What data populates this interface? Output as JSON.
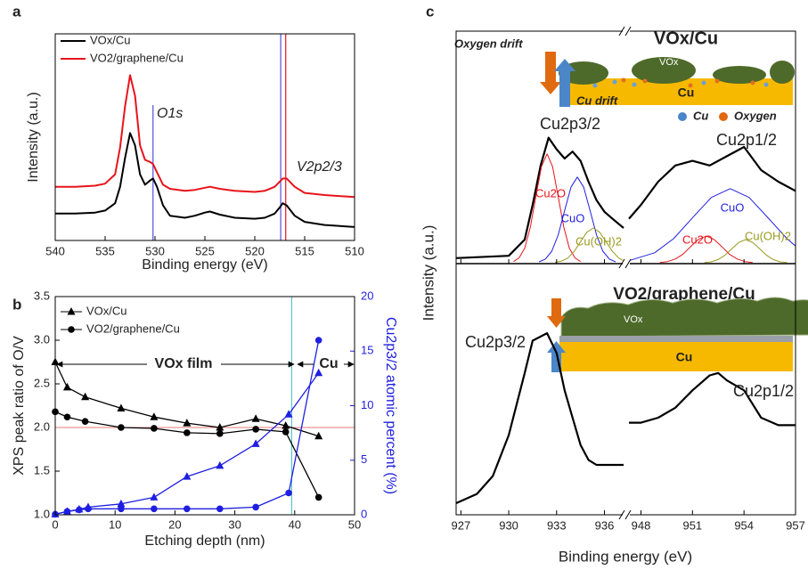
{
  "chart_data": [
    {
      "type": "line",
      "panel_label": "a",
      "x_label": "Binding energy (eV)",
      "y_label": "Intensity (a.u.)",
      "xlim": [
        540,
        510
      ],
      "xticks": [
        540,
        535,
        530,
        525,
        520,
        515,
        510
      ],
      "ylim": [
        0,
        10
      ],
      "x": [
        540,
        538,
        536,
        535,
        534,
        533.5,
        533,
        532.5,
        532,
        531.5,
        531,
        530.5,
        530.2,
        529.8,
        529.2,
        528.5,
        527,
        526,
        525,
        524.5,
        523.5,
        522,
        520,
        519,
        518,
        517.5,
        517.2,
        516.8,
        516,
        515,
        513,
        510
      ],
      "series": [
        {
          "name": "VOx/Cu",
          "color": "#000000",
          "values": [
            1.3,
            1.3,
            1.35,
            1.45,
            1.8,
            2.6,
            4.0,
            5.2,
            4.6,
            3.2,
            2.7,
            2.9,
            3.0,
            2.6,
            1.7,
            1.2,
            1.1,
            1.2,
            1.35,
            1.4,
            1.25,
            1.1,
            1.05,
            1.1,
            1.3,
            1.6,
            1.8,
            1.7,
            1.2,
            0.9,
            0.75,
            0.65
          ]
        },
        {
          "name": "VO2/graphene/Cu",
          "color": "#e8141b",
          "values": [
            2.6,
            2.6,
            2.65,
            2.75,
            3.2,
            4.5,
            6.5,
            8.0,
            7.0,
            4.6,
            3.9,
            3.8,
            3.7,
            3.3,
            2.7,
            2.5,
            2.4,
            2.45,
            2.55,
            2.6,
            2.5,
            2.4,
            2.35,
            2.4,
            2.6,
            2.85,
            3.0,
            3.0,
            2.6,
            2.3,
            2.2,
            2.1
          ]
        }
      ],
      "vlines": [
        {
          "x": 530.2,
          "color": "#5050e0"
        },
        {
          "x": 517.4,
          "color": "#5050e0"
        },
        {
          "x": 516.9,
          "color": "#e8141b"
        }
      ],
      "annotations": [
        "O1s",
        "V2p2/3"
      ]
    },
    {
      "type": "line",
      "panel_label": "b",
      "x_label": "Etching depth (nm)",
      "y_label": "XPS peak ratio of O/V",
      "y2_label": "Cu2p3/2 atomic percent (%)",
      "xlim": [
        0,
        50
      ],
      "xticks": [
        0,
        10,
        20,
        30,
        40,
        50
      ],
      "ylim": [
        1.0,
        3.5
      ],
      "yticks": [
        {
          "value": 1,
          "label": "1.0"
        },
        1.5,
        {
          "value": 2,
          "label": "2.0"
        },
        2.5,
        {
          "value": 3,
          "label": "3.0"
        },
        3.5
      ],
      "y2lim": [
        0,
        20
      ],
      "y2ticks": [
        0,
        5,
        10,
        15,
        20
      ],
      "y2_color": "#1f1fe0",
      "series": [
        {
          "name": "VOx/Cu",
          "color": "#000000",
          "marker": "triangle",
          "x": [
            0,
            2,
            5,
            11,
            16.5,
            22,
            27.5,
            33.5,
            38.5,
            44
          ],
          "values": [
            2.75,
            2.46,
            2.35,
            2.22,
            2.12,
            2.05,
            2.0,
            2.1,
            2.02,
            1.9
          ]
        },
        {
          "name": "VO2/graphene/Cu",
          "color": "#000000",
          "marker": "circle",
          "x": [
            0,
            2,
            5,
            11,
            16.5,
            22,
            27.5,
            33.5,
            38.5,
            44
          ],
          "values": [
            2.18,
            2.12,
            2.07,
            2.0,
            1.99,
            1.94,
            1.93,
            1.98,
            1.95,
            1.2
          ]
        },
        {
          "color": "#1f1fe0",
          "marker": "triangle",
          "axis": "y2",
          "x": [
            0,
            2,
            4,
            5.5,
            11,
            16.5,
            22,
            27.5,
            33.5,
            39,
            44
          ],
          "values": [
            0.05,
            0.3,
            0.5,
            0.7,
            1.0,
            1.6,
            3.5,
            4.5,
            6.5,
            9.2,
            13
          ]
        },
        {
          "color": "#1f1fe0",
          "marker": "circle",
          "axis": "y2",
          "x": [
            0,
            2,
            4,
            5.5,
            11,
            16.5,
            22,
            27.5,
            33.5,
            39,
            44
          ],
          "values": [
            0.05,
            0.3,
            0.45,
            0.55,
            0.55,
            0.55,
            0.55,
            0.55,
            0.7,
            2.0,
            16
          ]
        }
      ],
      "hlines": [
        {
          "y": 2.0,
          "color": "#e87878"
        }
      ],
      "vlines": [
        {
          "x": 39.5,
          "color": "#40c0c8"
        }
      ],
      "annotations": [
        "VOx film",
        "Cu"
      ]
    },
    {
      "type": "line",
      "panel_label": "c",
      "xlim_segments": [
        [
          926.7,
          937.2
        ],
        [
          947.3,
          957
        ]
      ],
      "ylim": [
        0,
        10
      ],
      "peak_labels": [
        "Cu2p3/2",
        "Cu2p1/2"
      ],
      "series": [
        {
          "color": "#000000",
          "x": [
            926.7,
            930,
            931,
            931.5,
            932,
            932.5,
            933,
            933.5,
            934,
            934.5,
            935,
            935.5,
            936,
            936.5,
            937.2,
            null,
            947.3,
            948,
            949,
            950,
            951,
            952,
            953,
            954,
            955,
            956,
            957
          ],
          "values": [
            0.2,
            0.3,
            1.0,
            2.5,
            4.2,
            5.4,
            4.9,
            4.5,
            4.8,
            4.4,
            3.5,
            2.7,
            2.2,
            1.9,
            1.5,
            null,
            1.9,
            2.5,
            3.5,
            4.2,
            4.4,
            4.2,
            4.6,
            5.0,
            4.0,
            3.5,
            3.1
          ]
        },
        {
          "name": "Cu2O",
          "color": "#e8141b",
          "x": [
            930.3,
            930.65,
            931.0,
            931.35,
            931.7,
            932.05,
            932.4,
            932.75,
            933.1,
            933.45,
            933.8,
            934.15,
            934.5,
            null,
            949.1,
            949.55,
            950.0,
            950.45,
            950.9,
            951.35,
            951.8,
            952.25,
            952.7,
            953.15,
            953.6,
            954.05,
            954.5
          ],
          "values": [
            0.05,
            0.21,
            0.63,
            1.53,
            2.85,
            4.15,
            4.7,
            4.15,
            2.85,
            1.53,
            0.63,
            0.21,
            0.05,
            null,
            0.01,
            0.05,
            0.16,
            0.37,
            0.7,
            1.01,
            1.15,
            1.01,
            0.7,
            0.37,
            0.16,
            0.05,
            0.01
          ]
        },
        {
          "name": "CuO",
          "color": "#2020e0",
          "x": [
            931.9,
            932.3,
            932.7,
            933.1,
            933.5,
            933.9,
            934.3,
            934.7,
            935.1,
            935.5,
            935.9,
            936.3,
            936.7,
            null,
            947.3,
            948.8,
            949.9,
            951.0,
            952.1,
            953.2,
            954.3,
            955.4,
            956.5,
            957
          ],
          "values": [
            0.04,
            0.16,
            0.5,
            1.2,
            2.25,
            3.26,
            3.7,
            3.26,
            2.25,
            1.2,
            0.5,
            0.16,
            0.04,
            null,
            0.09,
            0.43,
            1.04,
            1.94,
            2.82,
            3.2,
            2.82,
            1.94,
            1.04,
            0.72
          ]
        },
        {
          "name": "Cu(OH)2",
          "color": "#9a9a20",
          "x": [
            932.9,
            933.3,
            933.7,
            934.1,
            934.5,
            934.9,
            935.3,
            935.7,
            936.1,
            936.5,
            936.9,
            937.2,
            null,
            951.7,
            952.1,
            952.5,
            952.9,
            953.3,
            953.7,
            954.1,
            954.5,
            954.9,
            955.3,
            955.7,
            956.1,
            956.5
          ],
          "values": [
            0.02,
            0.07,
            0.2,
            0.49,
            0.91,
            1.32,
            1.5,
            1.32,
            0.91,
            0.49,
            0.2,
            0.09,
            null,
            0.01,
            0.04,
            0.14,
            0.33,
            0.61,
            0.88,
            1.0,
            0.88,
            0.61,
            0.33,
            0.14,
            0.04,
            0.01
          ]
        }
      ],
      "inset": {
        "title": "VOx/Cu",
        "film": "VOx",
        "substrate": "Cu",
        "oxygen_drift": "Oxygen drift",
        "cu_drift": "Cu drift",
        "legend": [
          "Cu",
          "Oxygen"
        ]
      }
    },
    {
      "type": "line",
      "x_label": "Binding energy (eV)",
      "y_label": "Intensity (a.u.)",
      "xlim_segments": [
        [
          926.7,
          937.2
        ],
        [
          947.3,
          957
        ]
      ],
      "ylim": [
        0,
        10
      ],
      "xticks": [
        927,
        930,
        933,
        936,
        948,
        951,
        954,
        957
      ],
      "peak_labels": [
        "Cu2p3/2",
        "Cu2p1/2"
      ],
      "series": [
        {
          "color": "#000000",
          "x": [
            926.7,
            928,
            929,
            930,
            931,
            931.5,
            932.4,
            933,
            933.5,
            934,
            934.5,
            935,
            935.5,
            936,
            937.2,
            null,
            947.3,
            948,
            949,
            950,
            951,
            952,
            952.5,
            953,
            954,
            955,
            956,
            957
          ],
          "values": [
            0.36,
            0.73,
            1.45,
            3.1,
            5.6,
            6.9,
            7.2,
            6.4,
            4.9,
            3.8,
            2.7,
            2.1,
            1.9,
            1.9,
            1.9,
            null,
            3.6,
            3.6,
            3.8,
            4.2,
            4.9,
            5.5,
            5.6,
            5.3,
            4.9,
            3.8,
            3.5,
            3.5
          ]
        }
      ],
      "inset": {
        "title": "VO2/graphene/Cu",
        "film": "VOx",
        "substrate": "Cu"
      }
    }
  ]
}
